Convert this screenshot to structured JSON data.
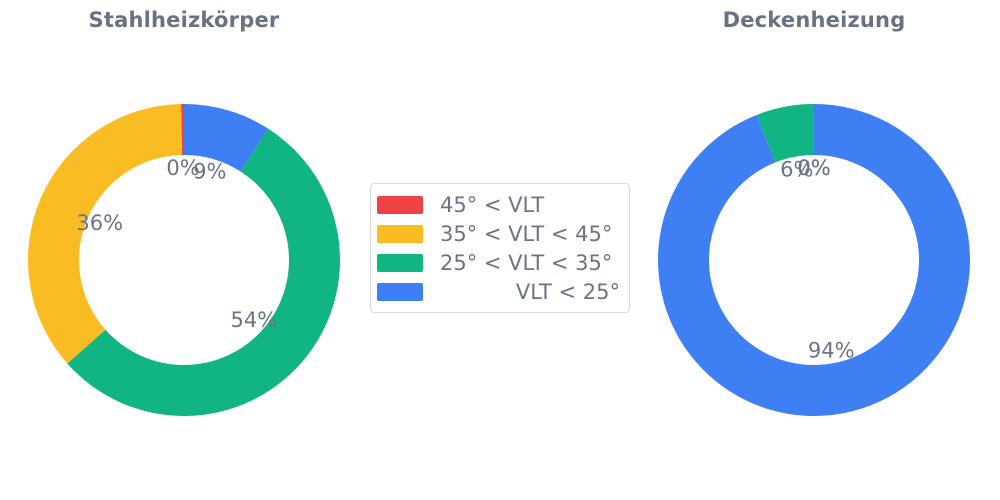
{
  "chart_data": [
    {
      "type": "pie",
      "title": "Stahlheizkörper",
      "hole": 0.67,
      "direction": "counterclockwise",
      "start_angle_deg": 0,
      "labels": [
        "45° < VLT",
        "35° < VLT < 45°",
        "25° < VLT < 35°",
        "VLT < 25°"
      ],
      "values": [
        0.3,
        36,
        54,
        9
      ],
      "display_values": [
        "0%",
        "36%",
        "54%",
        "9%"
      ],
      "colors": [
        "#ee4245",
        "#fabc23",
        "#11b483",
        "#3e80f3"
      ]
    },
    {
      "type": "pie",
      "title": "Deckenheizung",
      "hole": 0.67,
      "direction": "counterclockwise",
      "start_angle_deg": 0,
      "labels": [
        "45° < VLT",
        "35° < VLT < 45°",
        "25° < VLT < 35°",
        "VLT < 25°"
      ],
      "values": [
        0,
        0,
        6,
        94
      ],
      "display_values": [
        "0%",
        "0%",
        "6%",
        "94%"
      ],
      "colors": [
        "#ee4245",
        "#fabc23",
        "#11b483",
        "#3e80f3"
      ]
    }
  ],
  "legend": {
    "position": "center",
    "items": [
      {
        "label": "45° < VLT",
        "color": "#ee4245",
        "align": "left"
      },
      {
        "label": "35° < VLT < 45°",
        "color": "#fabc23",
        "align": "left"
      },
      {
        "label": "25° < VLT < 35°",
        "color": "#11b483",
        "align": "left"
      },
      {
        "label": "VLT < 25°",
        "color": "#3e80f3",
        "align": "right"
      }
    ]
  }
}
